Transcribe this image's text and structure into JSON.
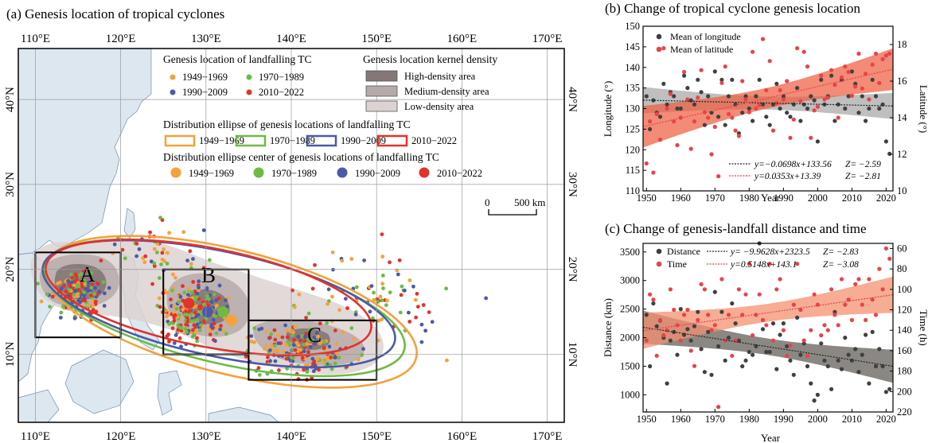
{
  "panel_a": {
    "title": "(a) Genesis location of tropical cyclones",
    "lon_ticks": [
      "110°E",
      "120°E",
      "130°E",
      "140°E",
      "150°E",
      "160°E",
      "170°E"
    ],
    "lat_ticks": [
      "10°N",
      "20°N",
      "30°N",
      "40°N"
    ],
    "legend_point_title": "Genesis location of landfalling TC",
    "legend_kde_title": "Genesis location kernel density",
    "legend_ellipse_title": "Distribution ellipse of genesis locations of landfalling TC",
    "legend_center_title": "Distribution ellipse center of genesis locations of landfalling TC",
    "kde_labels": [
      "High-density area",
      "Medium-density area",
      "Low-density area"
    ],
    "periods": [
      "1949−1969",
      "1970−1989",
      "1990−2009",
      "2010−2022"
    ],
    "period_colors": [
      "#F4A23A",
      "#6DBB45",
      "#4A5AA8",
      "#E3322B"
    ],
    "scalebar_zero": "0",
    "scalebar_label": "500 km",
    "box_labels": [
      "A",
      "B",
      "C"
    ],
    "map_extent": {
      "lon": [
        108,
        172
      ],
      "lat": [
        2,
        46
      ]
    },
    "regions": [
      {
        "label": "A",
        "lon": [
          110,
          120
        ],
        "lat": [
          12,
          22
        ]
      },
      {
        "label": "B",
        "lon": [
          125,
          135
        ],
        "lat": [
          10,
          20
        ]
      },
      {
        "label": "C",
        "lon": [
          135,
          150
        ],
        "lat": [
          7,
          14
        ]
      }
    ],
    "ellipse_centers": [
      {
        "period": "1949−1969",
        "lon": 133.0,
        "lat": 14.0
      },
      {
        "period": "1970−1989",
        "lon": 132.0,
        "lat": 15.0
      },
      {
        "period": "1990−2009",
        "lon": 130.2,
        "lat": 15.0
      },
      {
        "period": "2010−2022",
        "lon": 128.0,
        "lat": 16.0
      }
    ]
  },
  "panel_b": {
    "title": "(b) Change of tropical cyclone genesis location",
    "xlabel": "Year",
    "ylabel_left": "Longitude (°)",
    "ylabel_right": "Latitude (°)",
    "legend": [
      "Mean of longitude",
      "Mean of latitude"
    ],
    "colors": {
      "longitude": "#404040",
      "latitude": "#E8434A"
    },
    "xlim": [
      1949,
      2022
    ],
    "ylim_left": [
      110,
      150
    ],
    "ylim_right": [
      10,
      19
    ],
    "xticks": [
      1950,
      1960,
      1970,
      1980,
      1990,
      2000,
      2010,
      2020
    ],
    "yticks_left": [
      110,
      115,
      120,
      125,
      130,
      135,
      140,
      145,
      150
    ],
    "yticks_right": [
      10,
      12,
      14,
      16,
      18
    ],
    "eq1": "y=−0.0698x+133.56",
    "z1": "Z= −2.59",
    "eq2": "y=0.0353x+13.39",
    "z2": "Z= −2.81"
  },
  "panel_c": {
    "title": "(c) Change of genesis-landfall distance and time",
    "xlabel": "Year",
    "ylabel_left": "Distance (km)",
    "ylabel_right": "Time (h)",
    "legend": [
      "Distance",
      "Time"
    ],
    "colors": {
      "distance": "#404040",
      "time": "#E8434A"
    },
    "xlim": [
      1949,
      2022
    ],
    "ylim_left": [
      700,
      3650
    ],
    "ylim_right": [
      220,
      55
    ],
    "xticks": [
      1950,
      1960,
      1970,
      1980,
      1990,
      2000,
      2010,
      2020
    ],
    "yticks_left": [
      1000,
      1500,
      2000,
      2500,
      3000,
      3500
    ],
    "yticks_right": [
      60,
      80,
      100,
      120,
      140,
      160,
      180,
      200,
      220
    ],
    "eq1": "y= −9.9628x+2323.5",
    "z1": "Z= −2.83",
    "eq2": "y=0.5148x+143.1",
    "z2": "Z= −3.08"
  },
  "chart_data": [
    {
      "type": "scatter",
      "title": "Change of tropical cyclone genesis location",
      "xlabel": "Year",
      "ylabel": "Longitude (°) / Latitude (°)",
      "series": [
        {
          "name": "Mean of longitude",
          "axis": "left",
          "x": [
            1950,
            1951,
            1952,
            1953,
            1954,
            1955,
            1956,
            1957,
            1958,
            1959,
            1960,
            1961,
            1962,
            1963,
            1964,
            1965,
            1966,
            1967,
            1968,
            1969,
            1970,
            1971,
            1972,
            1973,
            1974,
            1975,
            1976,
            1977,
            1978,
            1979,
            1980,
            1981,
            1982,
            1983,
            1984,
            1985,
            1986,
            1987,
            1988,
            1989,
            1990,
            1991,
            1992,
            1993,
            1994,
            1995,
            1996,
            1997,
            1998,
            1999,
            2000,
            2001,
            2002,
            2003,
            2004,
            2005,
            2006,
            2007,
            2008,
            2009,
            2010,
            2011,
            2012,
            2013,
            2014,
            2015,
            2016,
            2017,
            2018,
            2019,
            2020,
            2021
          ],
          "y": [
            133,
            125,
            132,
            129,
            128,
            136,
            131,
            134,
            133,
            130,
            130,
            138,
            135,
            132,
            131,
            137,
            134,
            126,
            133,
            129,
            139,
            128,
            137,
            126,
            133,
            137,
            131,
            124,
            129,
            133,
            130,
            127,
            133,
            137,
            131,
            128,
            126,
            131,
            136,
            130,
            133,
            129,
            128,
            131,
            135,
            127,
            131,
            130,
            133,
            132,
            122,
            137,
            131,
            133,
            138,
            127,
            131,
            137,
            130,
            133,
            139,
            136,
            129,
            133,
            127,
            130,
            137,
            133,
            130,
            131,
            122,
            119
          ]
        },
        {
          "name": "Mean of latitude",
          "axis": "right",
          "x": [
            1950,
            1951,
            1952,
            1953,
            1954,
            1955,
            1956,
            1957,
            1958,
            1959,
            1960,
            1961,
            1962,
            1963,
            1964,
            1965,
            1966,
            1967,
            1968,
            1969,
            1970,
            1971,
            1972,
            1973,
            1974,
            1975,
            1976,
            1977,
            1978,
            1979,
            1980,
            1981,
            1982,
            1983,
            1984,
            1985,
            1986,
            1987,
            1988,
            1989,
            1990,
            1991,
            1992,
            1993,
            1994,
            1995,
            1996,
            1997,
            1998,
            1999,
            2000,
            2001,
            2002,
            2003,
            2004,
            2005,
            2006,
            2007,
            2008,
            2009,
            2010,
            2011,
            2012,
            2013,
            2014,
            2015,
            2016,
            2017,
            2018,
            2019,
            2020,
            2021
          ],
          "y": [
            11.5,
            13.8,
            11.0,
            14.2,
            12.8,
            17.8,
            14.5,
            15.3,
            13.8,
            12.5,
            14.0,
            16.5,
            15.0,
            12.3,
            13.8,
            15.1,
            16.6,
            14.3,
            14.0,
            12.0,
            13.5,
            10.8,
            15.9,
            16.8,
            14.2,
            14.0,
            13.3,
            13.0,
            16.0,
            15.0,
            14.3,
            17.6,
            14.5,
            14.7,
            18.3,
            15.5,
            17.1,
            13.3,
            14.8,
            15.5,
            15.0,
            16.0,
            12.9,
            13.9,
            17.8,
            14.9,
            17.6,
            16.8,
            12.9,
            14.4,
            14.6,
            16.3,
            15.0,
            15.1,
            16.6,
            15.8,
            14.0,
            16.2,
            16.8,
            16.5,
            15.2,
            15.7,
            17.5,
            15.6,
            16.4,
            15.0,
            16.9,
            17.5,
            15.9,
            17.2,
            17.4,
            17.5
          ]
        }
      ],
      "trends": [
        {
          "series": "Mean of longitude",
          "equation": "y=−0.0698x+133.56",
          "Z": -2.59
        },
        {
          "series": "Mean of latitude",
          "equation": "y=0.0353x+13.39",
          "Z": -2.81
        }
      ]
    },
    {
      "type": "scatter",
      "title": "Change of genesis-landfall distance and time",
      "xlabel": "Year",
      "ylabel": "Distance (km) / Time (h)",
      "series": [
        {
          "name": "Distance",
          "axis": "left",
          "x": [
            1950,
            1951,
            1952,
            1953,
            1954,
            1955,
            1956,
            1957,
            1958,
            1959,
            1960,
            1961,
            1962,
            1963,
            1964,
            1965,
            1966,
            1967,
            1968,
            1969,
            1970,
            1971,
            1972,
            1973,
            1974,
            1975,
            1976,
            1977,
            1978,
            1979,
            1980,
            1981,
            1982,
            1983,
            1984,
            1985,
            1986,
            1987,
            1988,
            1989,
            1990,
            1991,
            1992,
            1993,
            1994,
            1995,
            1996,
            1997,
            1998,
            1999,
            2000,
            2001,
            2002,
            2003,
            2004,
            2005,
            2006,
            2007,
            2008,
            2009,
            2010,
            2011,
            2012,
            2013,
            2014,
            2015,
            2016,
            2017,
            2018,
            2019,
            2020,
            2021
          ],
          "y": [
            2400,
            1500,
            2600,
            2200,
            2300,
            2000,
            1200,
            1950,
            2100,
            1700,
            2500,
            2050,
            2150,
            1950,
            2200,
            2450,
            1800,
            1400,
            2100,
            1350,
            2800,
            1850,
            2450,
            1600,
            2000,
            2600,
            2250,
            1950,
            1500,
            1600,
            1750,
            1700,
            1850,
            3650,
            2150,
            1750,
            1750,
            2250,
            1450,
            2050,
            2250,
            1850,
            1600,
            1350,
            2350,
            1700,
            1900,
            1500,
            1200,
            900,
            1000,
            1900,
            1600,
            1500,
            1100,
            2450,
            1600,
            1450,
            2000,
            1700,
            1600,
            1800,
            1400,
            1700,
            2050,
            1200,
            2100,
            1500,
            1800,
            1500,
            1050,
            1100
          ]
        },
        {
          "name": "Time",
          "axis": "right",
          "x": [
            1950,
            1951,
            1952,
            1953,
            1954,
            1955,
            1956,
            1957,
            1958,
            1959,
            1960,
            1961,
            1962,
            1963,
            1964,
            1965,
            1966,
            1967,
            1968,
            1969,
            1970,
            1971,
            1972,
            1973,
            1974,
            1975,
            1976,
            1977,
            1978,
            1979,
            1980,
            1981,
            1982,
            1983,
            1984,
            1985,
            1986,
            1987,
            1988,
            1989,
            1990,
            1991,
            1992,
            1993,
            1994,
            1995,
            1996,
            1997,
            1998,
            1999,
            2000,
            2001,
            2002,
            2003,
            2004,
            2005,
            2006,
            2007,
            2008,
            2009,
            2010,
            2011,
            2012,
            2013,
            2014,
            2015,
            2016,
            2017,
            2018,
            2019,
            2020,
            2021
          ],
          "y": [
            150,
            105,
            110,
            165,
            130,
            145,
            140,
            100,
            120,
            135,
            150,
            125,
            120,
            160,
            175,
            130,
            95,
            100,
            125,
            140,
            135,
            215,
            90,
            150,
            125,
            165,
            150,
            100,
            125,
            105,
            75,
            145,
            125,
            105,
            130,
            135,
            75,
            150,
            100,
            90,
            140,
            165,
            155,
            115,
            75,
            120,
            150,
            165,
            140,
            105,
            115,
            145,
            135,
            140,
            100,
            125,
            135,
            90,
            115,
            110,
            130,
            95,
            90,
            115,
            130,
            90,
            110,
            125,
            80,
            100,
            60,
            70
          ]
        }
      ],
      "trends": [
        {
          "series": "Distance",
          "equation": "y= −9.9628x+2323.5",
          "Z": -2.83
        },
        {
          "series": "Time",
          "equation": "y=0.5148x+143.1",
          "Z": -3.08
        }
      ]
    }
  ]
}
